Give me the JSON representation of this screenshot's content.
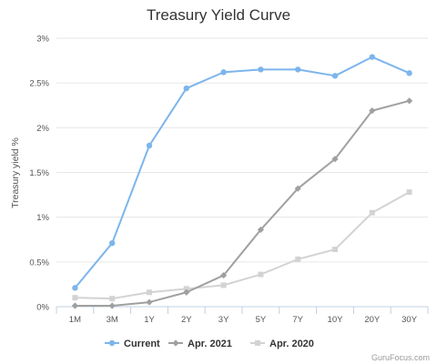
{
  "chart_data": {
    "type": "line",
    "title": "Treasury Yield Curve",
    "xlabel": "",
    "ylabel": "Treasury yield %",
    "categories": [
      "1M",
      "3M",
      "1Y",
      "2Y",
      "3Y",
      "5Y",
      "7Y",
      "10Y",
      "20Y",
      "30Y"
    ],
    "ylim": [
      0,
      3
    ],
    "yticks": [
      {
        "value": 0,
        "label": "0%"
      },
      {
        "value": 0.5,
        "label": "0.5%"
      },
      {
        "value": 1,
        "label": "1%"
      },
      {
        "value": 1.5,
        "label": "1.5%"
      },
      {
        "value": 2,
        "label": "2%"
      },
      {
        "value": 2.5,
        "label": "2.5%"
      },
      {
        "value": 3,
        "label": "3%"
      }
    ],
    "grid": true,
    "legend_position": "bottom",
    "series": [
      {
        "name": "Current",
        "color": "#7cb5ec",
        "marker": "circle",
        "values": [
          0.21,
          0.71,
          1.8,
          2.44,
          2.62,
          2.65,
          2.65,
          2.58,
          2.79,
          2.61
        ]
      },
      {
        "name": "Apr. 2021",
        "color": "#a0a0a0",
        "marker": "diamond",
        "values": [
          0.01,
          0.01,
          0.05,
          0.16,
          0.35,
          0.86,
          1.32,
          1.65,
          2.19,
          2.3
        ]
      },
      {
        "name": "Apr. 2020",
        "color": "#d3d3d3",
        "marker": "square",
        "values": [
          0.1,
          0.09,
          0.16,
          0.2,
          0.24,
          0.36,
          0.53,
          0.64,
          1.05,
          1.28
        ]
      }
    ]
  },
  "credit": "GuruFocus.com"
}
